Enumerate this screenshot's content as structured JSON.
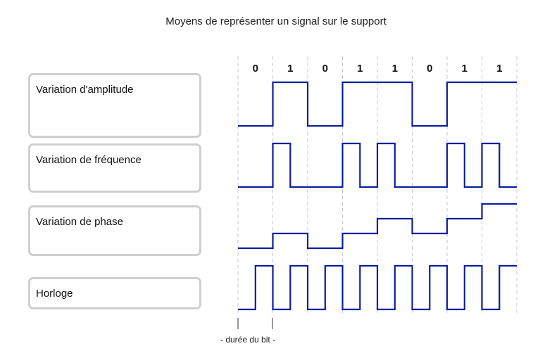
{
  "title": "Moyens de représenter un signal sur le support",
  "bits": [
    "0",
    "1",
    "0",
    "1",
    "1",
    "0",
    "1",
    "1"
  ],
  "rows": [
    {
      "id": "amplitude",
      "label": "Variation d'amplitude"
    },
    {
      "id": "frequency",
      "label": "Variation de fréquence"
    },
    {
      "id": "phase",
      "label": "Variation de phase"
    },
    {
      "id": "clock",
      "label": "Horloge"
    }
  ],
  "phase_levels": [
    0,
    1,
    0,
    1,
    2,
    1,
    2,
    3
  ],
  "bit_duration_label": "- durée du bit -",
  "colors": {
    "signal": "#0a1fa0",
    "grid": "#c8c8c8",
    "box_border": "#cfcfcf"
  }
}
